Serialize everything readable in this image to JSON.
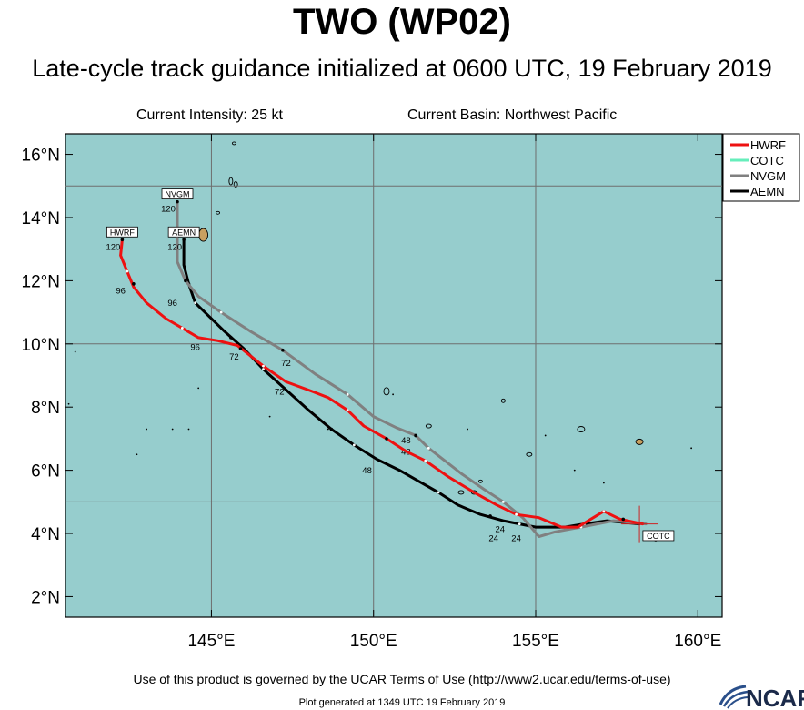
{
  "header": {
    "title": "TWO (WP02)",
    "subtitle": "Late-cycle track guidance initialized at 0600 UTC, 19 February 2019",
    "current_intensity": "Current Intensity: 25 kt",
    "current_basin": "Current Basin: Northwest Pacific"
  },
  "map": {
    "lon_range": [
      140.5,
      160.75
    ],
    "lat_range": [
      1.35,
      16.65
    ],
    "lon_ticks": [
      145,
      150,
      155,
      160
    ],
    "lon_tick_labels": [
      "145°E",
      "150°E",
      "155°E",
      "160°E"
    ],
    "lat_ticks": [
      2,
      4,
      6,
      8,
      10,
      12,
      14,
      16
    ],
    "lat_tick_labels": [
      "2°N",
      "4°N",
      "6°N",
      "8°N",
      "10°N",
      "12°N",
      "14°N",
      "16°N"
    ],
    "grid_lons": [
      145,
      150,
      155
    ],
    "grid_lats": [
      5,
      10,
      15
    ],
    "ocean_color": "#96cdcd",
    "land_color": "#c8a060",
    "legend_position": "top-right"
  },
  "legend": [
    {
      "name": "HWRF",
      "color": "#ee1111"
    },
    {
      "name": "COTC",
      "color": "#66eebb"
    },
    {
      "name": "NVGM",
      "color": "#808080"
    },
    {
      "name": "AEMN",
      "color": "#000000"
    }
  ],
  "tracks": [
    {
      "name": "AEMN",
      "color": "#000000",
      "points": [
        [
          158.2,
          4.3
        ],
        [
          157.2,
          4.4
        ],
        [
          156.5,
          4.3
        ],
        [
          155.9,
          4.2
        ],
        [
          155.5,
          4.2
        ],
        [
          155.0,
          4.2
        ],
        [
          154.5,
          4.3
        ],
        [
          154.0,
          4.4
        ],
        [
          153.3,
          4.6
        ],
        [
          152.6,
          4.9
        ],
        [
          152.0,
          5.3
        ],
        [
          151.4,
          5.65
        ],
        [
          150.8,
          6.0
        ],
        [
          150.1,
          6.35
        ],
        [
          149.4,
          6.8
        ],
        [
          148.7,
          7.3
        ],
        [
          148.0,
          7.9
        ],
        [
          147.3,
          8.55
        ],
        [
          146.6,
          9.2
        ],
        [
          146.0,
          9.85
        ],
        [
          145.4,
          10.4
        ],
        [
          144.9,
          10.9
        ],
        [
          144.5,
          11.3
        ],
        [
          144.3,
          11.9
        ],
        [
          144.15,
          12.5
        ],
        [
          144.15,
          13.3
        ]
      ],
      "marks": [
        [
          153.6,
          4.55
        ],
        [
          148.7,
          7.3
        ],
        [
          145.6,
          10.2
        ],
        [
          144.3,
          11.9
        ]
      ],
      "labels": [
        {
          "text": "24",
          "lon": 153.7,
          "lat": 3.75
        },
        {
          "text": "48",
          "lon": 149.8,
          "lat": 5.9
        },
        {
          "text": "72",
          "lon": 147.1,
          "lat": 8.4
        },
        {
          "text": "96",
          "lon": 144.5,
          "lat": 9.8
        }
      ]
    },
    {
      "name": "NVGM",
      "color": "#808080",
      "points": [
        [
          158.4,
          4.3
        ],
        [
          157.4,
          4.4
        ],
        [
          156.4,
          4.2
        ],
        [
          155.6,
          4.05
        ],
        [
          155.1,
          3.9
        ],
        [
          154.6,
          4.5
        ],
        [
          154.0,
          5.0
        ],
        [
          153.4,
          5.4
        ],
        [
          152.7,
          5.9
        ],
        [
          152.2,
          6.3
        ],
        [
          151.7,
          6.7
        ],
        [
          151.3,
          7.1
        ],
        [
          150.7,
          7.35
        ],
        [
          150.0,
          7.7
        ],
        [
          149.2,
          8.4
        ],
        [
          148.2,
          9.05
        ],
        [
          147.2,
          9.8
        ],
        [
          146.2,
          10.4
        ],
        [
          145.3,
          11.0
        ],
        [
          144.6,
          11.5
        ],
        [
          144.2,
          12.0
        ],
        [
          143.95,
          12.6
        ],
        [
          143.95,
          13.4
        ],
        [
          143.95,
          14.5
        ]
      ],
      "marks": [
        [
          156.3,
          4.25
        ],
        [
          151.3,
          7.1
        ],
        [
          147.2,
          9.8
        ],
        [
          144.2,
          12.0
        ]
      ],
      "labels": [
        {
          "text": "24",
          "lon": 154.4,
          "lat": 3.75
        },
        {
          "text": "48",
          "lon": 151.0,
          "lat": 6.5
        },
        {
          "text": "72",
          "lon": 147.3,
          "lat": 9.3
        },
        {
          "text": "96",
          "lon": 143.8,
          "lat": 11.2
        }
      ]
    },
    {
      "name": "HWRF",
      "color": "#ee1111",
      "points": [
        [
          158.3,
          4.3
        ],
        [
          157.6,
          4.45
        ],
        [
          157.1,
          4.7
        ],
        [
          156.3,
          4.2
        ],
        [
          155.8,
          4.2
        ],
        [
          155.1,
          4.5
        ],
        [
          154.4,
          4.6
        ],
        [
          153.8,
          4.9
        ],
        [
          153.1,
          5.3
        ],
        [
          152.3,
          5.8
        ],
        [
          151.6,
          6.3
        ],
        [
          151.0,
          6.6
        ],
        [
          150.4,
          7.0
        ],
        [
          149.7,
          7.4
        ],
        [
          149.2,
          7.9
        ],
        [
          148.6,
          8.3
        ],
        [
          148.1,
          8.5
        ],
        [
          147.3,
          8.8
        ],
        [
          146.6,
          9.3
        ],
        [
          145.8,
          9.95
        ],
        [
          145.2,
          10.1
        ],
        [
          144.6,
          10.2
        ],
        [
          144.1,
          10.5
        ],
        [
          143.6,
          10.8
        ],
        [
          143.0,
          11.3
        ],
        [
          142.6,
          11.8
        ],
        [
          142.4,
          12.3
        ],
        [
          142.2,
          12.8
        ],
        [
          142.25,
          13.3
        ]
      ],
      "marks": [
        [
          157.7,
          4.45
        ],
        [
          150.4,
          7.0
        ],
        [
          145.9,
          9.85
        ],
        [
          142.6,
          11.9
        ]
      ],
      "labels": [
        {
          "text": "24",
          "lon": 153.9,
          "lat": 4.05
        },
        {
          "text": "48",
          "lon": 151.0,
          "lat": 6.85
        },
        {
          "text": "72",
          "lon": 145.7,
          "lat": 9.5
        },
        {
          "text": "96",
          "lon": 142.2,
          "lat": 11.6
        }
      ]
    }
  ],
  "origin": {
    "lon": 158.2,
    "lat": 4.3
  },
  "end_labels": [
    {
      "name": "HWRF",
      "text": "HWRF",
      "lon": 142.25,
      "lat": 13.3,
      "hour": "120"
    },
    {
      "name": "NVGM",
      "text": "NVGM",
      "lon": 143.95,
      "lat": 14.5,
      "hour": "120"
    },
    {
      "name": "AEMN",
      "text": "AEMN",
      "lon": 144.15,
      "lat": 13.3,
      "hour": "120"
    },
    {
      "name": "COTC",
      "text": "COTC",
      "lon": 158.7,
      "lat": 3.8,
      "hour": ""
    }
  ],
  "footer": {
    "terms": "Use of this product is governed by the UCAR Terms of Use (http://www2.ucar.edu/terms-of-use)",
    "generated": "Plot generated at 1349 UTC  19 February 2019",
    "logo_text": "NCAR"
  }
}
